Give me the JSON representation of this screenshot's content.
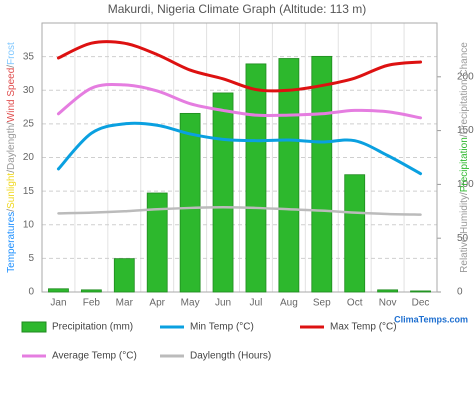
{
  "chart_data": {
    "type": "combo",
    "title": "Makurdi, Nigeria Climate Graph (Altitude: 113 m)",
    "y_label_parts": [
      {
        "text": "Temperatures",
        "color": "#1e90ff"
      },
      {
        "text": "/",
        "color": "#888888"
      },
      {
        "text": "Sunlight",
        "color": "#f0d820"
      },
      {
        "text": "/",
        "color": "#888888"
      },
      {
        "text": "Daylength",
        "color": "#999999"
      },
      {
        "text": "/",
        "color": "#888888"
      },
      {
        "text": "Wind Speed",
        "color": "#e05050"
      },
      {
        "text": "/",
        "color": "#888888"
      },
      {
        "text": "Frost",
        "color": "#80c8ff"
      }
    ],
    "y2_label_parts": [
      {
        "text": "Relative Humidity",
        "color": "#999999"
      },
      {
        "text": "/",
        "color": "#888888"
      },
      {
        "text": "Precipitation",
        "color": "#2db82d"
      },
      {
        "text": "/",
        "color": "#888888"
      },
      {
        "text": "Precipitation Chance",
        "color": "#999999"
      }
    ],
    "categories": [
      "Jan",
      "Feb",
      "Mar",
      "Apr",
      "May",
      "Jun",
      "Jul",
      "Aug",
      "Sep",
      "Oct",
      "Nov",
      "Dec"
    ],
    "ylim": [
      0,
      40
    ],
    "yticks": [
      0,
      5,
      10,
      15,
      20,
      25,
      30,
      35
    ],
    "y2lim": [
      0,
      250
    ],
    "y2ticks": [
      0,
      50,
      100,
      150,
      200
    ],
    "grid": true,
    "series": [
      {
        "name": "Precipitation (mm)",
        "type": "bar",
        "axis": "y2",
        "color": "#2db82d",
        "values": [
          3,
          2,
          31,
          92,
          166,
          185,
          212,
          217,
          219,
          109,
          2,
          1
        ]
      },
      {
        "name": "Min Temp (°C)",
        "type": "line",
        "color": "#0aa0e0",
        "values": [
          18.3,
          23.6,
          25,
          24.8,
          23.5,
          22.7,
          22.5,
          22.6,
          22.3,
          22.5,
          20.3,
          17.6
        ]
      },
      {
        "name": "Max Temp (°C)",
        "type": "line",
        "color": "#dd1111",
        "values": [
          34.8,
          37,
          37,
          35.3,
          33,
          31.7,
          30.1,
          30,
          30.7,
          31.8,
          33.7,
          34.2
        ]
      },
      {
        "name": "Average Temp (°C)",
        "type": "line",
        "color": "#e57de0",
        "values": [
          26.5,
          30.3,
          30.8,
          29.9,
          28,
          27,
          26.3,
          26.3,
          26.5,
          27,
          26.8,
          25.9
        ]
      },
      {
        "name": "Daylength (Hours)",
        "type": "line",
        "color": "#bbbbbb",
        "values": [
          11.7,
          11.8,
          12,
          12.3,
          12.5,
          12.6,
          12.5,
          12.3,
          12.1,
          11.8,
          11.6,
          11.5
        ]
      }
    ],
    "watermark": "ClimaTemps.com"
  }
}
